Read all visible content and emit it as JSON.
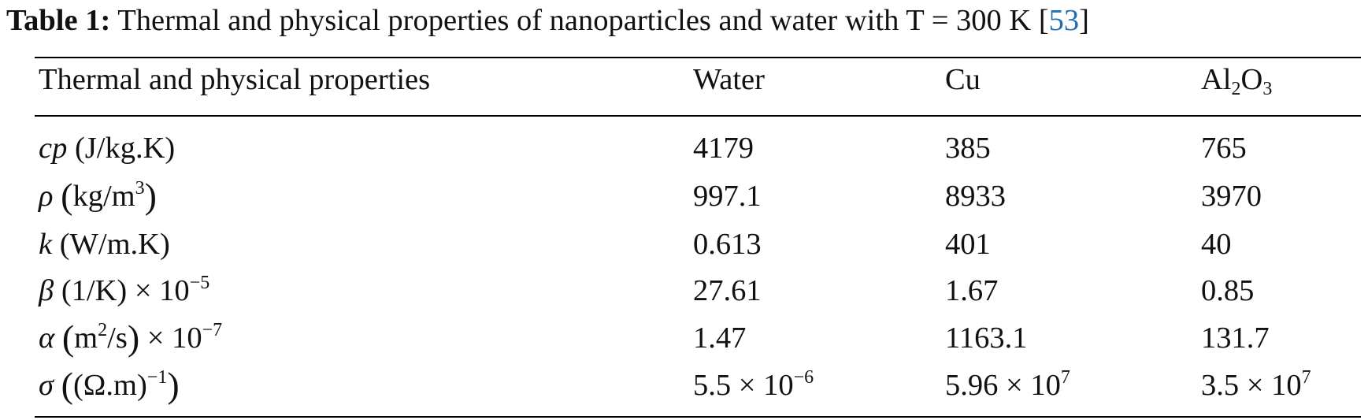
{
  "caption": {
    "label": "Table 1:",
    "text": "Thermal and physical properties of nanoparticles and water with T = 300 K [",
    "citation": "53",
    "close": "]"
  },
  "table": {
    "headers": [
      "Thermal and physical properties",
      "Water",
      "Cu",
      "Al2O3"
    ],
    "header_al": "Al",
    "header_sub2": "2",
    "header_o": "O",
    "header_sub3": "3",
    "rows": [
      {
        "symbol": "cp",
        "unit": " (J/kg.K)",
        "water": "4179",
        "cu": "385",
        "al2o3": "765"
      },
      {
        "symbol": "ρ",
        "unit_pre": "kg/m",
        "unit_sup": "3",
        "water": "997.1",
        "cu": "8933",
        "al2o3": "3970"
      },
      {
        "symbol": "k",
        "unit": " (W/m.K)",
        "water": "0.613",
        "cu": "401",
        "al2o3": "40"
      },
      {
        "symbol": "β",
        "unit": " (1/K) × 10",
        "exp": "−5",
        "water": "27.61",
        "cu": "1.67",
        "al2o3": "0.85"
      },
      {
        "symbol": "α",
        "unit_pre": "m",
        "unit_sup": "2",
        "unit_post": "/s",
        "tail": " × 10",
        "exp": "−7",
        "water": "1.47",
        "cu": "1163.1",
        "al2o3": "131.7"
      },
      {
        "symbol": "σ",
        "unit_pre": "(Ω.m)",
        "unit_sup": "−1",
        "water": "5.5 × 10",
        "water_exp": "−6",
        "cu": "5.96 × 10",
        "cu_exp": "7",
        "al2o3": "3.5 × 10",
        "al2o3_exp": "7"
      }
    ]
  }
}
